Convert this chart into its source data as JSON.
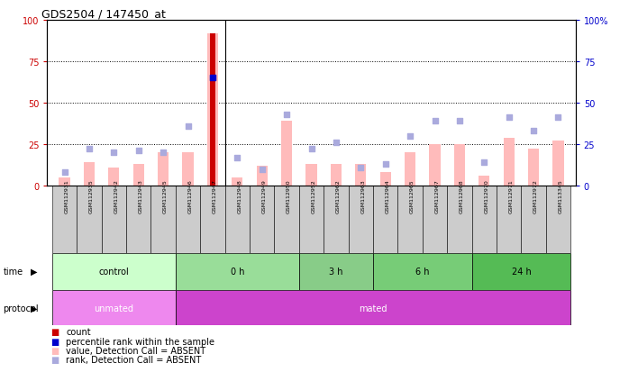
{
  "title": "GDS2504 / 147450_at",
  "samples": [
    "GSM112931",
    "GSM112935",
    "GSM112942",
    "GSM112943",
    "GSM112945",
    "GSM112946",
    "GSM112947",
    "GSM112948",
    "GSM112949",
    "GSM112950",
    "GSM112952",
    "GSM112962",
    "GSM112963",
    "GSM112964",
    "GSM112965",
    "GSM112967",
    "GSM112968",
    "GSM112970",
    "GSM112971",
    "GSM112972",
    "GSM113345"
  ],
  "count_values": [
    5,
    14,
    11,
    13,
    20,
    20,
    92,
    5,
    12,
    39,
    13,
    13,
    13,
    8,
    20,
    25,
    25,
    6,
    29,
    22,
    27
  ],
  "rank_values": [
    8,
    22,
    20,
    21,
    20,
    36,
    65,
    17,
    10,
    43,
    22,
    26,
    11,
    13,
    30,
    39,
    39,
    14,
    41,
    33,
    41
  ],
  "special_index": 6,
  "count_color": "#cc0000",
  "count_bar_color": "#ffbbbb",
  "rank_dot_color": "#aaaadd",
  "special_rank_color": "#0000cc",
  "ylim": [
    0,
    100
  ],
  "dotted_lines": [
    25,
    50,
    75
  ],
  "time_groups": [
    {
      "label": "control",
      "start": 0,
      "end": 5,
      "color": "#ccffcc"
    },
    {
      "label": "0 h",
      "start": 5,
      "end": 10,
      "color": "#99dd99"
    },
    {
      "label": "3 h",
      "start": 10,
      "end": 13,
      "color": "#88cc88"
    },
    {
      "label": "6 h",
      "start": 13,
      "end": 17,
      "color": "#77cc77"
    },
    {
      "label": "24 h",
      "start": 17,
      "end": 21,
      "color": "#55bb55"
    }
  ],
  "protocol_groups": [
    {
      "label": "unmated",
      "start": 0,
      "end": 5,
      "color": "#ee88ee"
    },
    {
      "label": "mated",
      "start": 5,
      "end": 21,
      "color": "#cc44cc"
    }
  ],
  "left_tick_color": "#cc0000",
  "right_tick_color": "#0000cc",
  "legend_items": [
    {
      "color": "#cc0000",
      "label": "count"
    },
    {
      "color": "#0000cc",
      "label": "percentile rank within the sample"
    },
    {
      "color": "#ffbbbb",
      "label": "value, Detection Call = ABSENT"
    },
    {
      "color": "#aaaadd",
      "label": "rank, Detection Call = ABSENT"
    }
  ]
}
